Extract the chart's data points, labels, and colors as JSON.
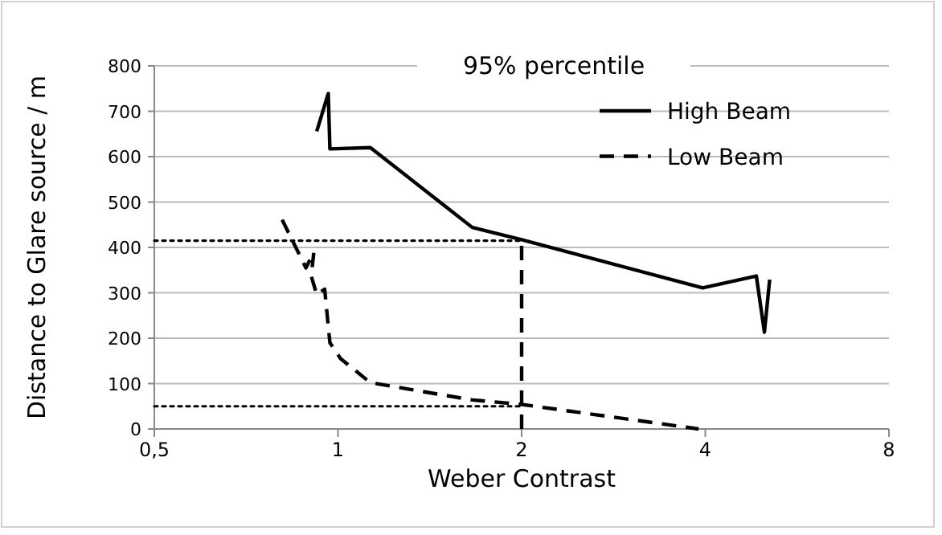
{
  "chart_data": {
    "type": "line",
    "title": "95% percentile",
    "xlabel": "Weber Contrast",
    "ylabel": "Distance to Glare source / m",
    "log": "x",
    "xlim": [
      0.5,
      8
    ],
    "xticks": [
      {
        "value": 0.5,
        "label": "0,5"
      },
      1,
      2,
      4,
      8
    ],
    "ylim": [
      0,
      800
    ],
    "yticks": [
      0,
      100,
      200,
      300,
      400,
      500,
      600,
      700,
      800
    ],
    "grid": "y",
    "legend": "top right",
    "series": [
      {
        "name": "High Beam",
        "color": "#000000",
        "line_style": "solid",
        "x": [
          0.923,
          0.964,
          0.97,
          1.13,
          1.66,
          2.0,
          3.96,
          4.85,
          5.0,
          5.1
        ],
        "values": [
          656,
          739,
          617,
          620,
          444,
          417,
          311,
          337,
          213,
          329
        ]
      },
      {
        "name": "Low Beam",
        "color": "#000000",
        "line_style": "dashed",
        "x": [
          0.81,
          0.877,
          0.886,
          0.913,
          0.904,
          0.923,
          0.951,
          0.97,
          1.01,
          1.13,
          1.66,
          2.0,
          3.9
        ],
        "values": [
          461,
          367,
          355,
          390,
          337,
          296,
          308,
          190,
          155,
          102,
          64,
          54,
          0
        ]
      },
      {
        "color": "#000000",
        "line_style": "dotted",
        "x": [
          0.5,
          2
        ],
        "values": [
          415,
          415
        ]
      },
      {
        "color": "#000000",
        "line_style": "dotted",
        "x": [
          0.5,
          2
        ],
        "values": [
          50,
          50
        ]
      },
      {
        "color": "#000000",
        "line_style": "dashed",
        "x": [
          2,
          2
        ],
        "values": [
          0,
          415
        ]
      }
    ]
  }
}
